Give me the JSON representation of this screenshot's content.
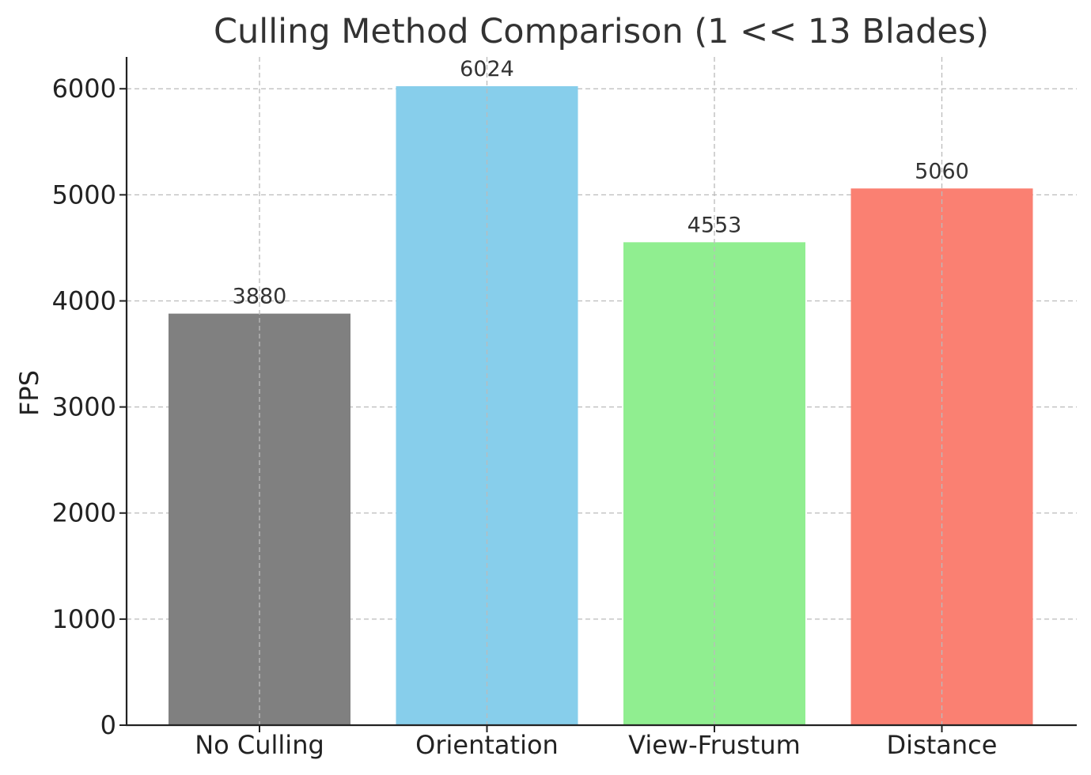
{
  "chart_data": {
    "type": "bar",
    "title": "Culling Method Comparison (1 << 13 Blades)",
    "xlabel": "",
    "ylabel": "FPS",
    "categories": [
      "No Culling",
      "Orientation",
      "View-Frustum",
      "Distance"
    ],
    "values": [
      3880,
      6024,
      4553,
      5060
    ],
    "data_labels": [
      "3880",
      "6024",
      "4553",
      "5060"
    ],
    "colors": [
      "#808080",
      "#87ceeb",
      "#90ee90",
      "#fa8072"
    ],
    "ylim": [
      0,
      6300
    ],
    "yticks": [
      0,
      1000,
      2000,
      3000,
      4000,
      5000,
      6000
    ],
    "ytick_labels": [
      "0",
      "1000",
      "2000",
      "3000",
      "4000",
      "5000",
      "6000"
    ],
    "grid": true,
    "legend": "none"
  }
}
